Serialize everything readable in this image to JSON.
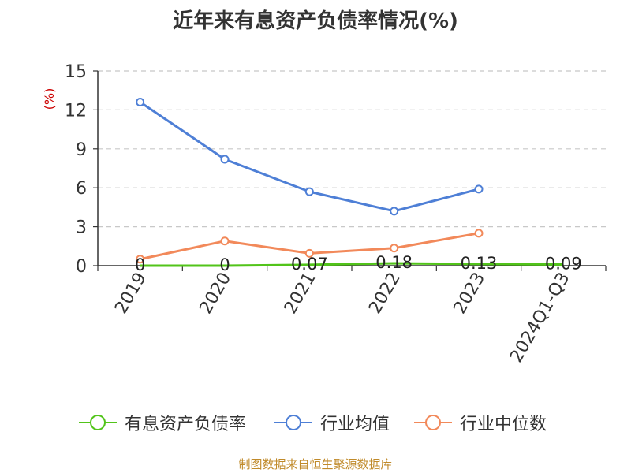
{
  "chart_data": {
    "type": "line",
    "title": "近年来有息资产负债率情况(%)",
    "ylabel": "(%)",
    "categories": [
      "2019",
      "2020",
      "2021",
      "2022",
      "2023",
      "2024Q1-Q3"
    ],
    "ylim": [
      0,
      15
    ],
    "yticks": [
      0,
      3,
      6,
      9,
      12,
      15
    ],
    "grid": true,
    "legend_position": "bottom",
    "series": [
      {
        "name": "有息资产负债率",
        "color": "#52c41a",
        "values": [
          0,
          0,
          0.07,
          0.18,
          0.13,
          0.09
        ],
        "labels": [
          "0",
          "0",
          "0.07",
          "0.18",
          "0.13",
          "0.09"
        ]
      },
      {
        "name": "行业均值",
        "color": "#4e7fd6",
        "values": [
          12.6,
          8.2,
          5.7,
          4.2,
          5.9,
          null
        ]
      },
      {
        "name": "行业中位数",
        "color": "#f2895a",
        "values": [
          0.5,
          1.9,
          0.95,
          1.35,
          2.5,
          null
        ]
      }
    ]
  },
  "source": "制图数据来自恒生聚源数据库"
}
